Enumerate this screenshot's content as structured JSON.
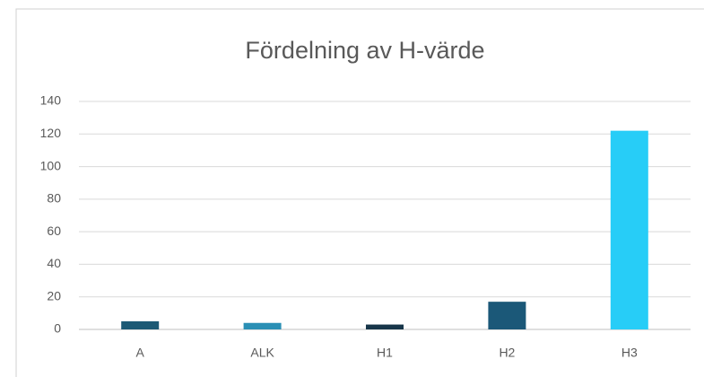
{
  "chart_data": {
    "type": "bar",
    "title": "Fördelning av H-värde",
    "categories": [
      "A",
      "ALK",
      "H1",
      "H2",
      "H3"
    ],
    "values": [
      5,
      4,
      3,
      17,
      122
    ],
    "colors": [
      "#1d5a75",
      "#2a8fb5",
      "#17364a",
      "#1b5878",
      "#27cdf7"
    ],
    "ylim": [
      0,
      140
    ],
    "yticks": [
      0,
      20,
      40,
      60,
      80,
      100,
      120,
      140
    ],
    "grid": true
  }
}
